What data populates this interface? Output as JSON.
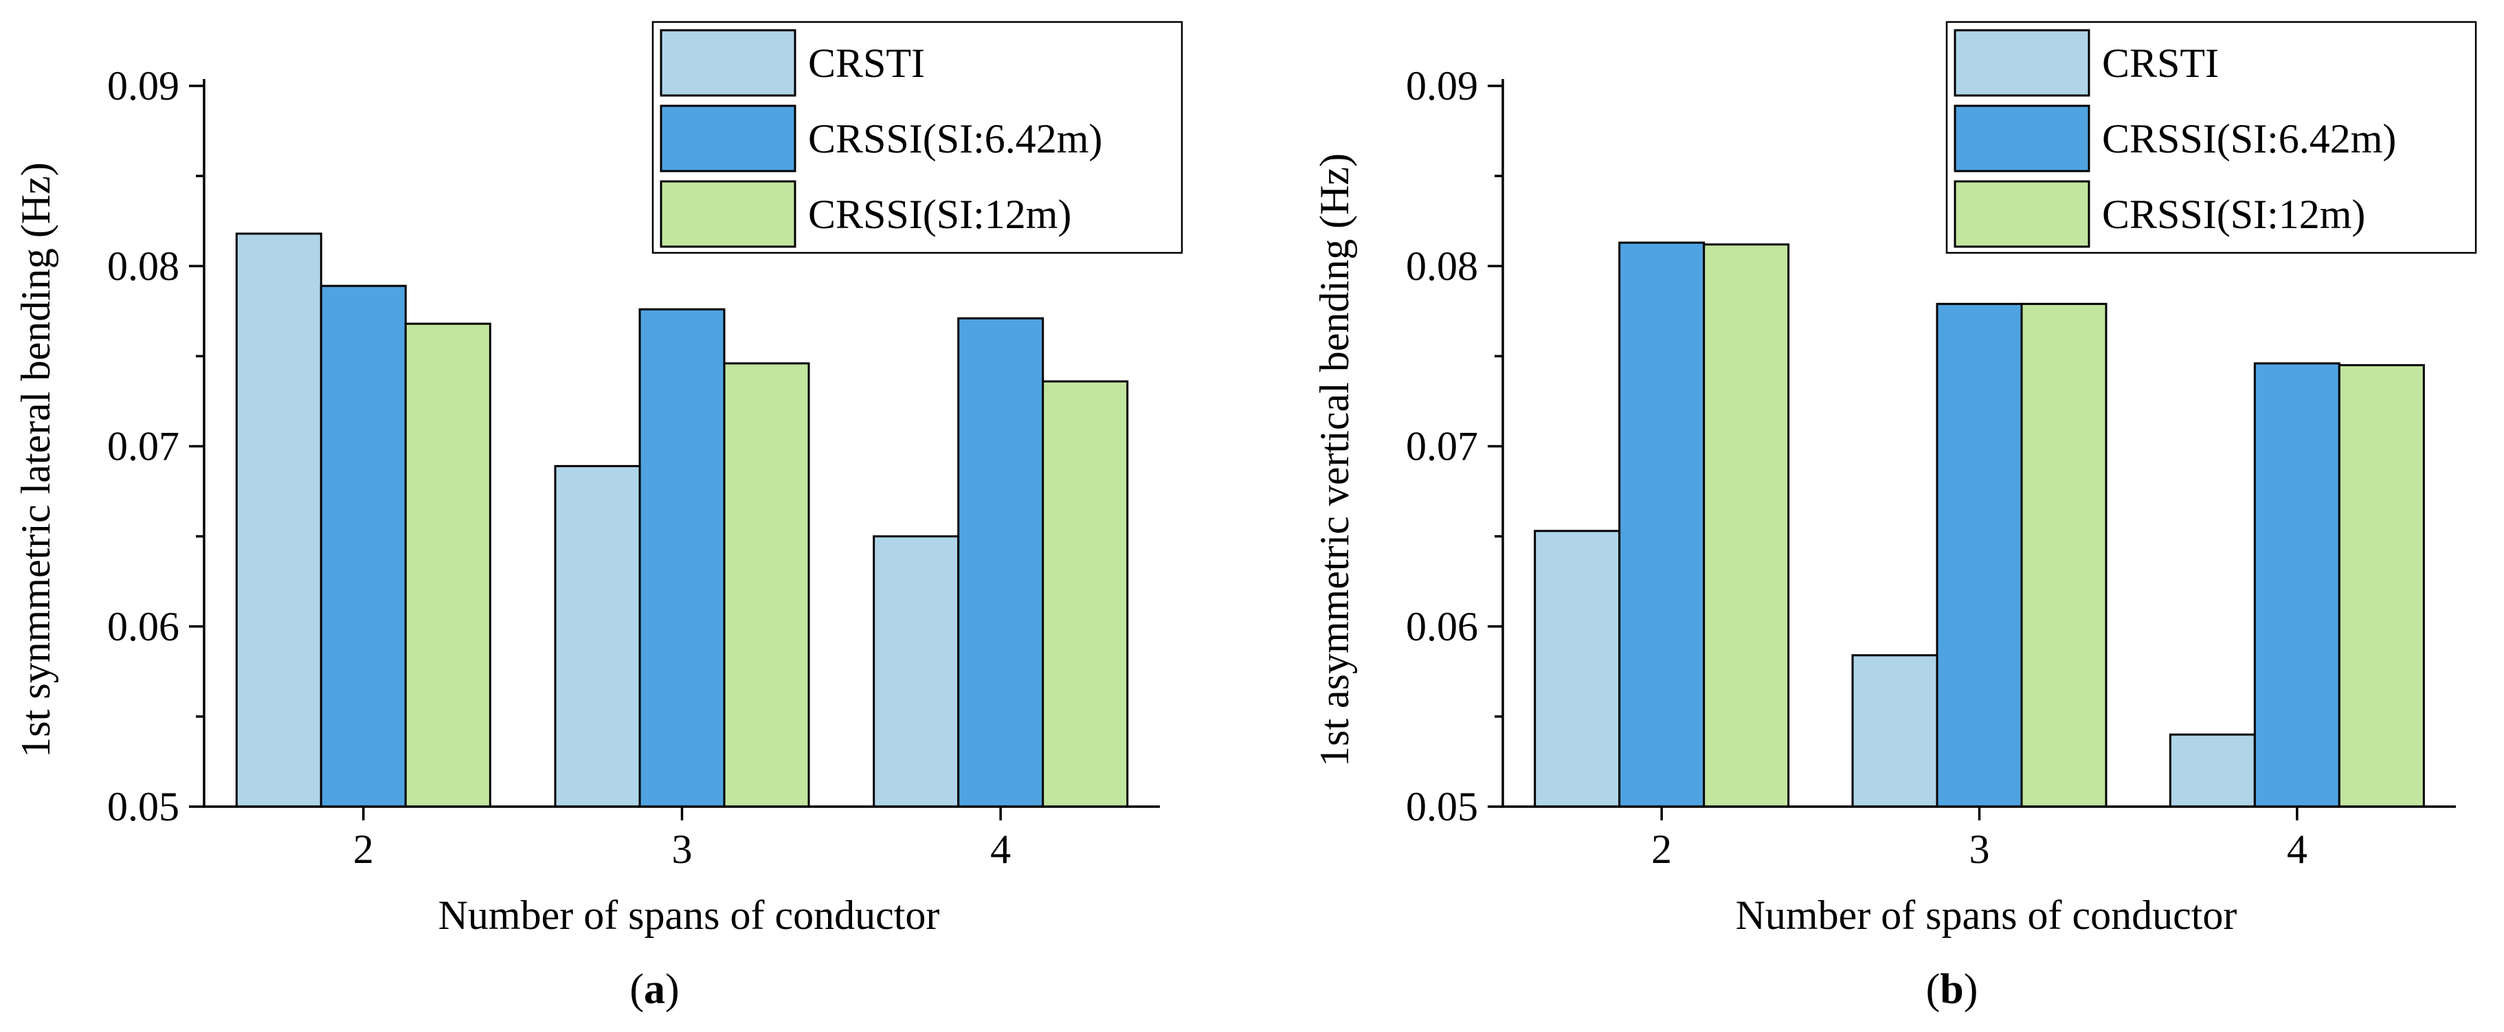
{
  "chart_data": [
    {
      "panel": "a",
      "type": "bar",
      "categories": [
        "2",
        "3",
        "4"
      ],
      "series": [
        {
          "name": "CRSTI",
          "color": "#b0d4e8",
          "values": [
            0.0818,
            0.0689,
            0.065
          ]
        },
        {
          "name": "CRSSI(SI:6.42m)",
          "color": "#4fa3e0",
          "values": [
            0.0789,
            0.0776,
            0.0771
          ]
        },
        {
          "name": "CRSSI(SI:12m)",
          "color": "#c2e5a0",
          "values": [
            0.0768,
            0.0746,
            0.0736
          ]
        }
      ],
      "xlabel": "Number of spans of conductor",
      "ylabel": "1st synmmetric lateral bending (Hz)",
      "ylim": [
        0.05,
        0.09
      ],
      "yticks": [
        "0.05",
        "0.06",
        "0.07",
        "0.08",
        "0.09"
      ],
      "legend": "top-right",
      "panel_label": {
        "open": "(",
        "letter": "a",
        "close": ")"
      }
    },
    {
      "panel": "b",
      "type": "bar",
      "categories": [
        "2",
        "3",
        "4"
      ],
      "series": [
        {
          "name": "CRSTI",
          "color": "#b0d4e8",
          "values": [
            0.0653,
            0.0584,
            0.054
          ]
        },
        {
          "name": "CRSSI(SI:6.42m)",
          "color": "#4fa3e0",
          "values": [
            0.0813,
            0.0779,
            0.0746
          ]
        },
        {
          "name": "CRSSI(SI:12m)",
          "color": "#c2e5a0",
          "values": [
            0.0812,
            0.0779,
            0.0745
          ]
        }
      ],
      "xlabel": "Number of spans of conductor",
      "ylabel": "1st asymmetric vertical bending (Hz)",
      "ylim": [
        0.05,
        0.09
      ],
      "yticks": [
        "0.05",
        "0.06",
        "0.07",
        "0.08",
        "0.09"
      ],
      "legend": "top-right",
      "panel_label": {
        "open": "(",
        "letter": "b",
        "close": ")"
      }
    }
  ]
}
